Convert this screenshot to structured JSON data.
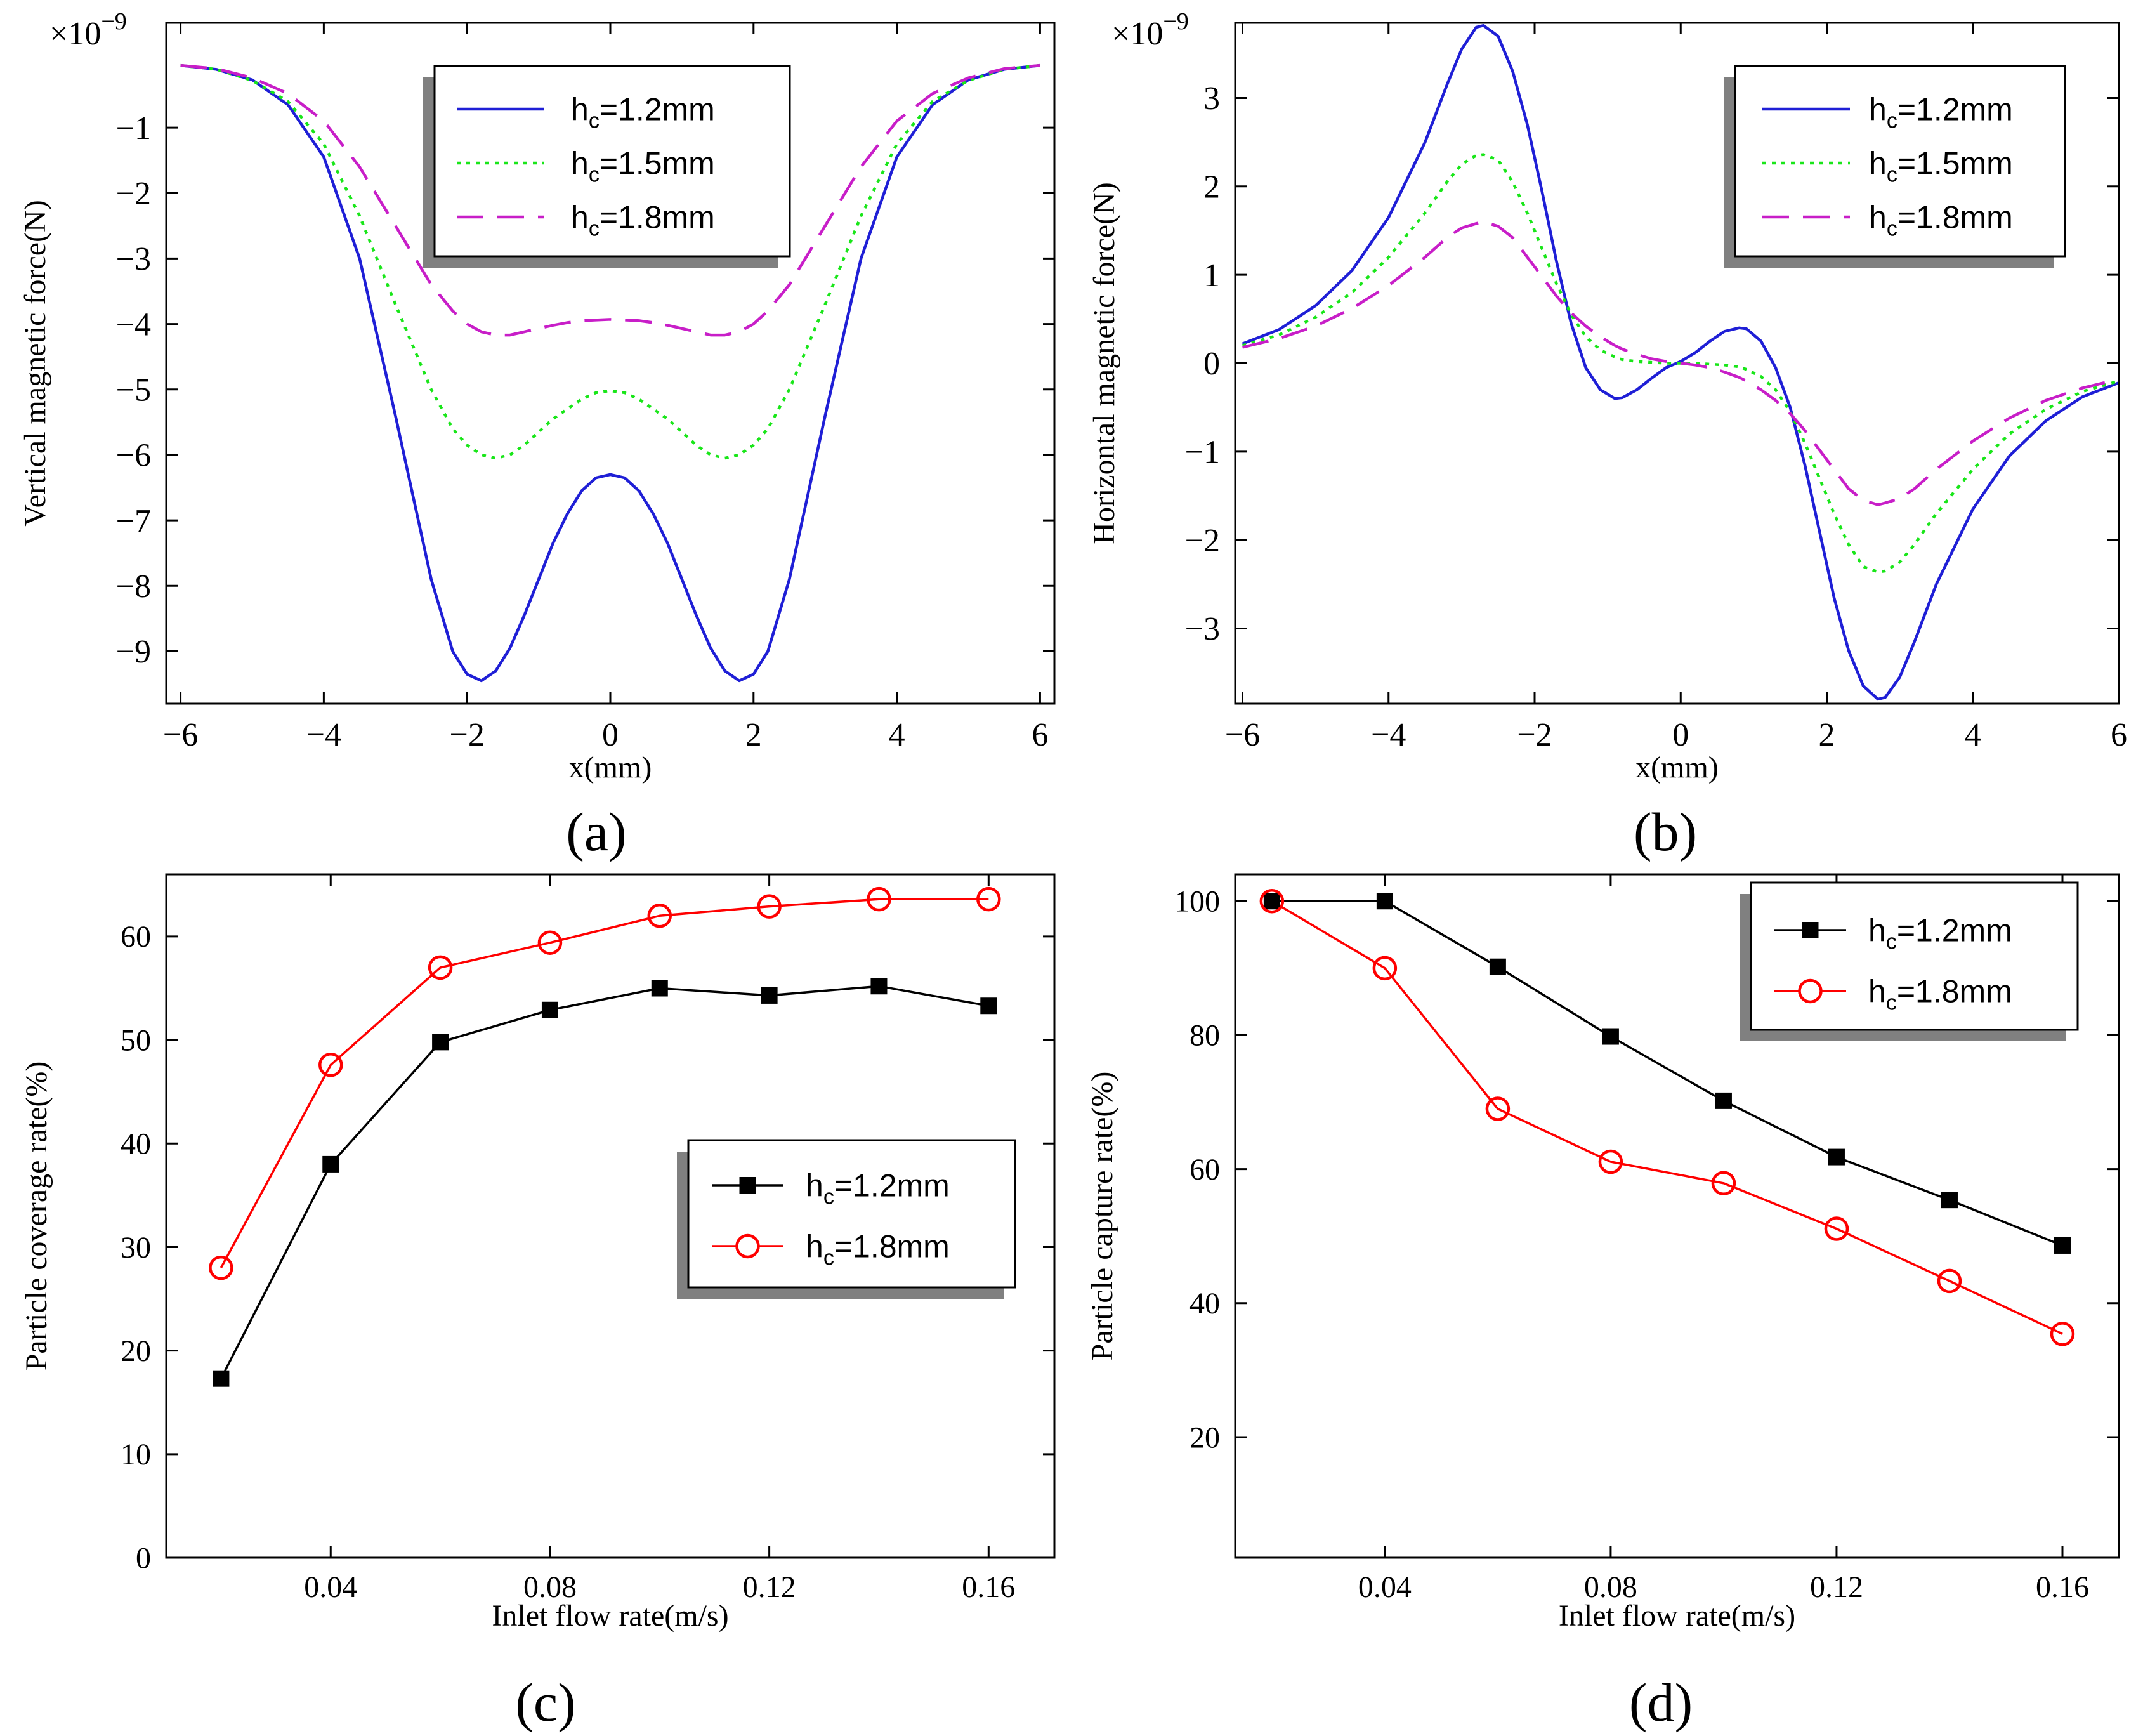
{
  "panels": [
    {
      "caption": "(a)"
    },
    {
      "caption": "(b)"
    },
    {
      "caption": "(c)"
    },
    {
      "caption": "(d)"
    }
  ],
  "legend_prefix": "h",
  "legend_sub": "c",
  "chart_data": [
    {
      "type": "line",
      "panel": "(a)",
      "xlabel": "x(mm)",
      "ylabel": "Vertical magnetic force(N)",
      "exponent_base": "×10",
      "exponent_power": "−9",
      "xlim": [
        -6.2,
        6.2
      ],
      "ylim": [
        -9.8,
        0.6
      ],
      "xticks": [
        -6,
        -4,
        -2,
        0,
        2,
        4,
        6
      ],
      "xtick_labels": [
        "−6",
        "−4",
        "−2",
        "0",
        "2",
        "4",
        "6"
      ],
      "yticks": [
        -1,
        -2,
        -3,
        -4,
        -5,
        -6,
        -7,
        -8,
        -9
      ],
      "ytick_labels": [
        "−1",
        "−2",
        "−3",
        "−4",
        "−5",
        "−6",
        "−7",
        "−8",
        "−9"
      ],
      "x": [
        -6,
        -5.5,
        -5,
        -4.5,
        -4,
        -3.5,
        -3,
        -2.5,
        -2.2,
        -2,
        -1.8,
        -1.6,
        -1.4,
        -1.2,
        -1,
        -0.8,
        -0.6,
        -0.4,
        -0.2,
        0,
        0.2,
        0.4,
        0.6,
        0.8,
        1,
        1.2,
        1.4,
        1.6,
        1.8,
        2,
        2.2,
        2.5,
        3,
        3.5,
        4,
        4.5,
        5,
        5.5,
        6
      ],
      "series": [
        {
          "name": "1.2mm",
          "color": "#1f1fd6",
          "dash": "solid",
          "values": [
            -0.05,
            -0.11,
            -0.27,
            -0.65,
            -1.45,
            -3.0,
            -5.4,
            -7.9,
            -9.0,
            -9.35,
            -9.45,
            -9.3,
            -8.95,
            -8.45,
            -7.9,
            -7.35,
            -6.9,
            -6.55,
            -6.35,
            -6.3,
            -6.35,
            -6.55,
            -6.9,
            -7.35,
            -7.9,
            -8.45,
            -8.95,
            -9.3,
            -9.45,
            -9.35,
            -9.0,
            -7.9,
            -5.4,
            -3.0,
            -1.45,
            -0.65,
            -0.27,
            -0.11,
            -0.05
          ]
        },
        {
          "name": "1.5mm",
          "color": "#19e619",
          "dash": "dotted",
          "values": [
            -0.05,
            -0.11,
            -0.28,
            -0.6,
            -1.25,
            -2.35,
            -3.7,
            -5.0,
            -5.6,
            -5.85,
            -6.0,
            -6.05,
            -6.0,
            -5.85,
            -5.65,
            -5.45,
            -5.3,
            -5.15,
            -5.05,
            -5.02,
            -5.05,
            -5.15,
            -5.3,
            -5.45,
            -5.65,
            -5.85,
            -6.0,
            -6.05,
            -6.0,
            -5.85,
            -5.6,
            -5.0,
            -3.7,
            -2.35,
            -1.25,
            -0.6,
            -0.28,
            -0.11,
            -0.05
          ]
        },
        {
          "name": "1.8mm",
          "color": "#c81ec8",
          "dash": "dashed",
          "values": [
            -0.05,
            -0.1,
            -0.24,
            -0.48,
            -0.9,
            -1.6,
            -2.5,
            -3.4,
            -3.8,
            -4.0,
            -4.12,
            -4.17,
            -4.17,
            -4.12,
            -4.07,
            -4.02,
            -3.98,
            -3.95,
            -3.94,
            -3.93,
            -3.94,
            -3.95,
            -3.98,
            -4.02,
            -4.07,
            -4.12,
            -4.17,
            -4.17,
            -4.12,
            -4.0,
            -3.8,
            -3.4,
            -2.5,
            -1.6,
            -0.9,
            -0.48,
            -0.24,
            -0.1,
            -0.05
          ]
        }
      ]
    },
    {
      "type": "line",
      "panel": "(b)",
      "xlabel": "x(mm)",
      "ylabel": "Horizontal magnetic force(N)",
      "exponent_base": "×10",
      "exponent_power": "−9",
      "xlim": [
        -6.1,
        6.0
      ],
      "ylim": [
        -3.85,
        3.85
      ],
      "xticks": [
        -6,
        -4,
        -2,
        0,
        2,
        4,
        6
      ],
      "xtick_labels": [
        "−6",
        "−4",
        "−2",
        "0",
        "2",
        "4",
        "6"
      ],
      "yticks": [
        3,
        2,
        1,
        0,
        -1,
        -2,
        -3
      ],
      "ytick_labels": [
        "3",
        "2",
        "1",
        "0",
        "−1",
        "−2",
        "−3"
      ],
      "x": [
        -6,
        -5.5,
        -5,
        -4.5,
        -4,
        -3.5,
        -3.2,
        -3,
        -2.8,
        -2.7,
        -2.5,
        -2.3,
        -2.1,
        -1.9,
        -1.7,
        -1.5,
        -1.3,
        -1.1,
        -0.9,
        -0.8,
        -0.6,
        -0.4,
        -0.2,
        0,
        0.2,
        0.4,
        0.6,
        0.8,
        0.9,
        1.1,
        1.3,
        1.5,
        1.7,
        1.9,
        2.1,
        2.3,
        2.5,
        2.7,
        2.8,
        3,
        3.2,
        3.5,
        4,
        4.5,
        5,
        5.5,
        6
      ],
      "series": [
        {
          "name": "1.2mm",
          "color": "#1f1fd6",
          "dash": "solid",
          "values": [
            0.22,
            0.38,
            0.65,
            1.05,
            1.65,
            2.5,
            3.15,
            3.55,
            3.8,
            3.82,
            3.7,
            3.3,
            2.7,
            1.95,
            1.15,
            0.45,
            -0.05,
            -0.3,
            -0.4,
            -0.39,
            -0.3,
            -0.17,
            -0.05,
            0.02,
            0.12,
            0.25,
            0.36,
            0.4,
            0.39,
            0.25,
            -0.05,
            -0.5,
            -1.15,
            -1.9,
            -2.65,
            -3.25,
            -3.65,
            -3.8,
            -3.78,
            -3.55,
            -3.15,
            -2.5,
            -1.65,
            -1.05,
            -0.65,
            -0.38,
            -0.22
          ]
        },
        {
          "name": "1.5mm",
          "color": "#19e619",
          "dash": "dotted",
          "values": [
            0.2,
            0.32,
            0.52,
            0.8,
            1.2,
            1.7,
            2.05,
            2.25,
            2.35,
            2.36,
            2.3,
            2.05,
            1.7,
            1.3,
            0.9,
            0.55,
            0.3,
            0.15,
            0.07,
            0.04,
            0.02,
            0.01,
            0.0,
            0.0,
            0.0,
            -0.01,
            -0.02,
            -0.04,
            -0.07,
            -0.15,
            -0.3,
            -0.55,
            -0.9,
            -1.3,
            -1.7,
            -2.05,
            -2.3,
            -2.36,
            -2.35,
            -2.25,
            -2.05,
            -1.7,
            -1.2,
            -0.8,
            -0.52,
            -0.32,
            -0.2
          ]
        },
        {
          "name": "1.8mm",
          "color": "#c81ec8",
          "dash": "dashed",
          "values": [
            0.18,
            0.28,
            0.42,
            0.62,
            0.88,
            1.2,
            1.42,
            1.53,
            1.58,
            1.6,
            1.55,
            1.42,
            1.2,
            0.98,
            0.76,
            0.57,
            0.42,
            0.3,
            0.2,
            0.16,
            0.1,
            0.05,
            0.02,
            0.0,
            -0.02,
            -0.05,
            -0.1,
            -0.16,
            -0.2,
            -0.3,
            -0.42,
            -0.57,
            -0.76,
            -0.98,
            -1.2,
            -1.42,
            -1.55,
            -1.6,
            -1.58,
            -1.53,
            -1.42,
            -1.2,
            -0.88,
            -0.62,
            -0.42,
            -0.28,
            -0.18
          ]
        }
      ]
    },
    {
      "type": "line",
      "panel": "(c)",
      "xlabel": "Inlet flow rate(m/s)",
      "ylabel": "Particle coverage rate(%)",
      "xlim": [
        0.01,
        0.172
      ],
      "ylim": [
        0,
        66
      ],
      "xticks": [
        0.04,
        0.08,
        0.12,
        0.16
      ],
      "xtick_labels": [
        "0.04",
        "0.08",
        "0.12",
        "0.16"
      ],
      "yticks": [
        0,
        10,
        20,
        30,
        40,
        50,
        60
      ],
      "ytick_labels": [
        "0",
        "10",
        "20",
        "30",
        "40",
        "50",
        "60"
      ],
      "x": [
        0.02,
        0.04,
        0.06,
        0.08,
        0.1,
        0.12,
        0.14,
        0.16
      ],
      "series": [
        {
          "name": "1.2mm",
          "color": "#000000",
          "marker": "square",
          "values": [
            17.3,
            38.0,
            49.8,
            52.9,
            55.0,
            54.3,
            55.2,
            53.3
          ]
        },
        {
          "name": "1.8mm",
          "color": "#ff0000",
          "marker": "circle",
          "values": [
            28.0,
            47.6,
            57.0,
            59.4,
            62.0,
            62.9,
            63.6,
            63.6
          ]
        }
      ]
    },
    {
      "type": "line",
      "panel": "(d)",
      "xlabel": "Inlet flow rate(m/s)",
      "ylabel": "Particle capture rate(%)",
      "xlim": [
        0.0135,
        0.17
      ],
      "ylim": [
        2,
        104
      ],
      "xticks": [
        0.04,
        0.08,
        0.12,
        0.16
      ],
      "xtick_labels": [
        "0.04",
        "0.08",
        "0.12",
        "0.16"
      ],
      "yticks": [
        20,
        40,
        60,
        80,
        100
      ],
      "ytick_labels": [
        "20",
        "40",
        "60",
        "80",
        "100"
      ],
      "x": [
        0.02,
        0.04,
        0.06,
        0.08,
        0.1,
        0.12,
        0.14,
        0.16
      ],
      "series": [
        {
          "name": "1.2mm",
          "color": "#000000",
          "marker": "square",
          "values": [
            100.0,
            100.0,
            90.2,
            79.8,
            70.2,
            61.8,
            55.4,
            48.6
          ]
        },
        {
          "name": "1.8mm",
          "color": "#ff0000",
          "marker": "circle",
          "values": [
            100.0,
            90.0,
            69.0,
            61.1,
            57.9,
            51.1,
            43.3,
            35.4
          ]
        }
      ]
    }
  ]
}
